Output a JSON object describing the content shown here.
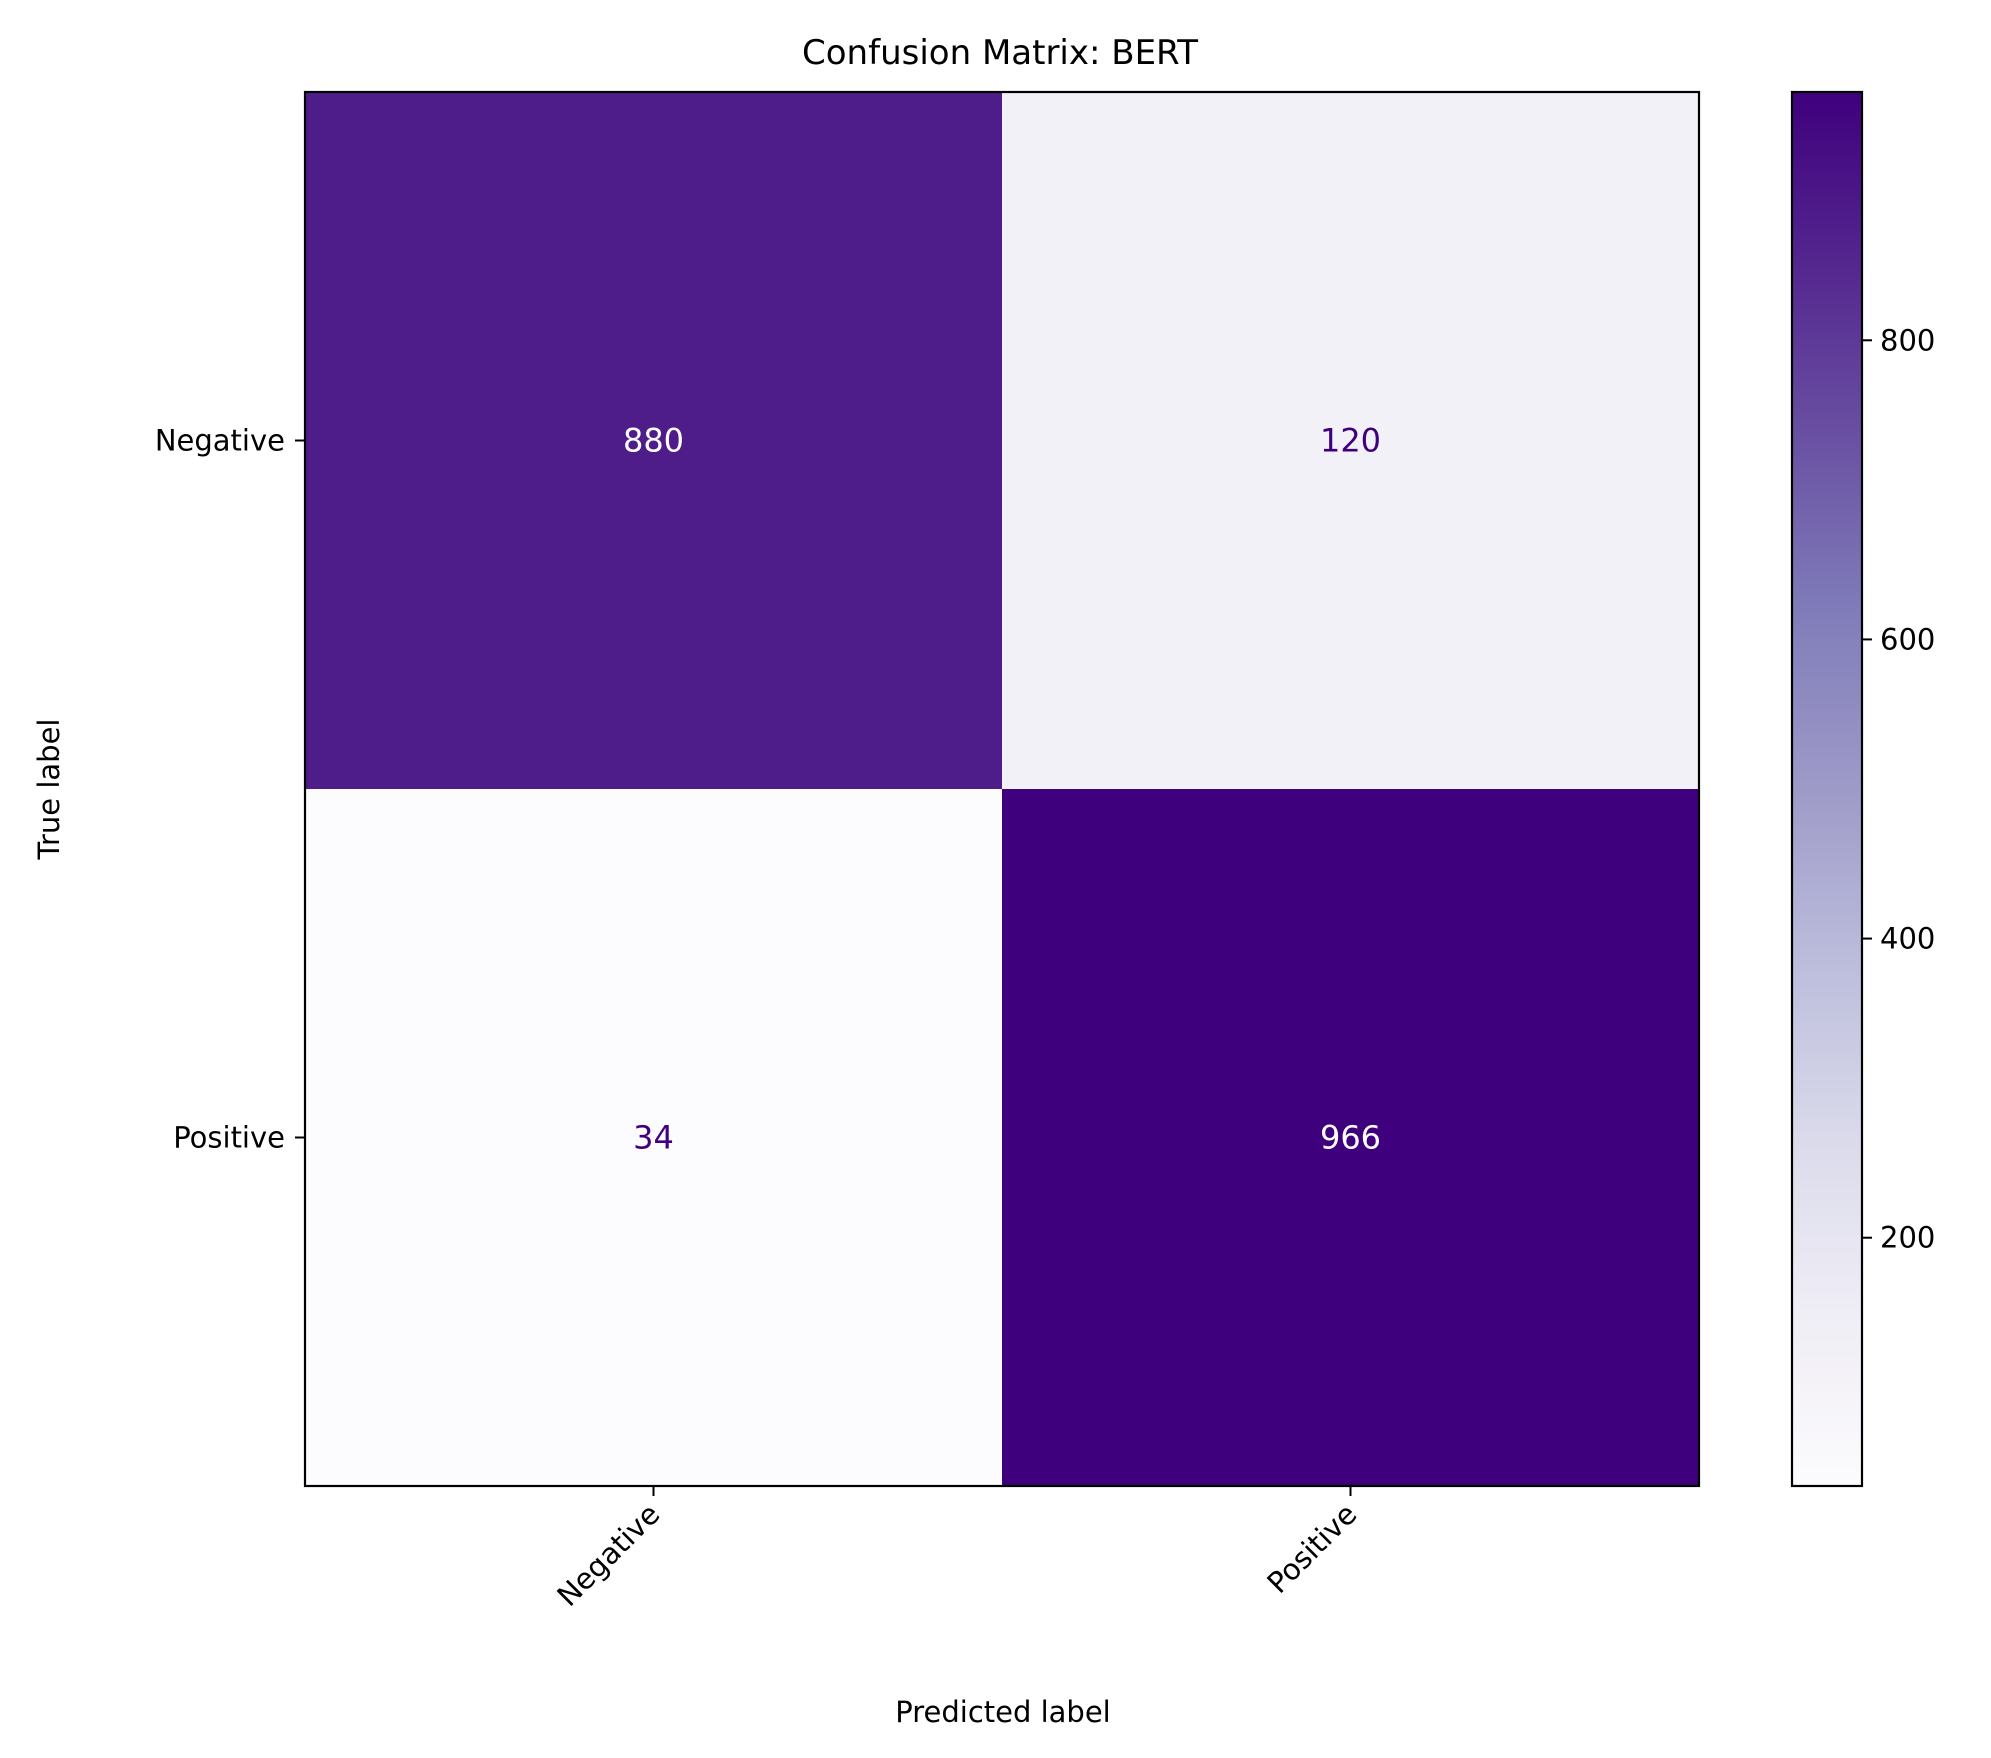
{
  "chart_data": {
    "type": "heatmap",
    "title": "Confusion Matrix: BERT",
    "xlabel": "Predicted label",
    "ylabel": "True label",
    "x_categories": [
      "Negative",
      "Positive"
    ],
    "y_categories": [
      "Negative",
      "Positive"
    ],
    "matrix": [
      [
        880,
        120
      ],
      [
        34,
        966
      ]
    ],
    "colormap": "Purples",
    "colorbar": {
      "range": [
        34,
        966
      ],
      "ticks": [
        200,
        400,
        600,
        800
      ]
    },
    "grid": false,
    "colors": {
      "low": "#fcfbfd",
      "high": "#3f007d"
    }
  }
}
